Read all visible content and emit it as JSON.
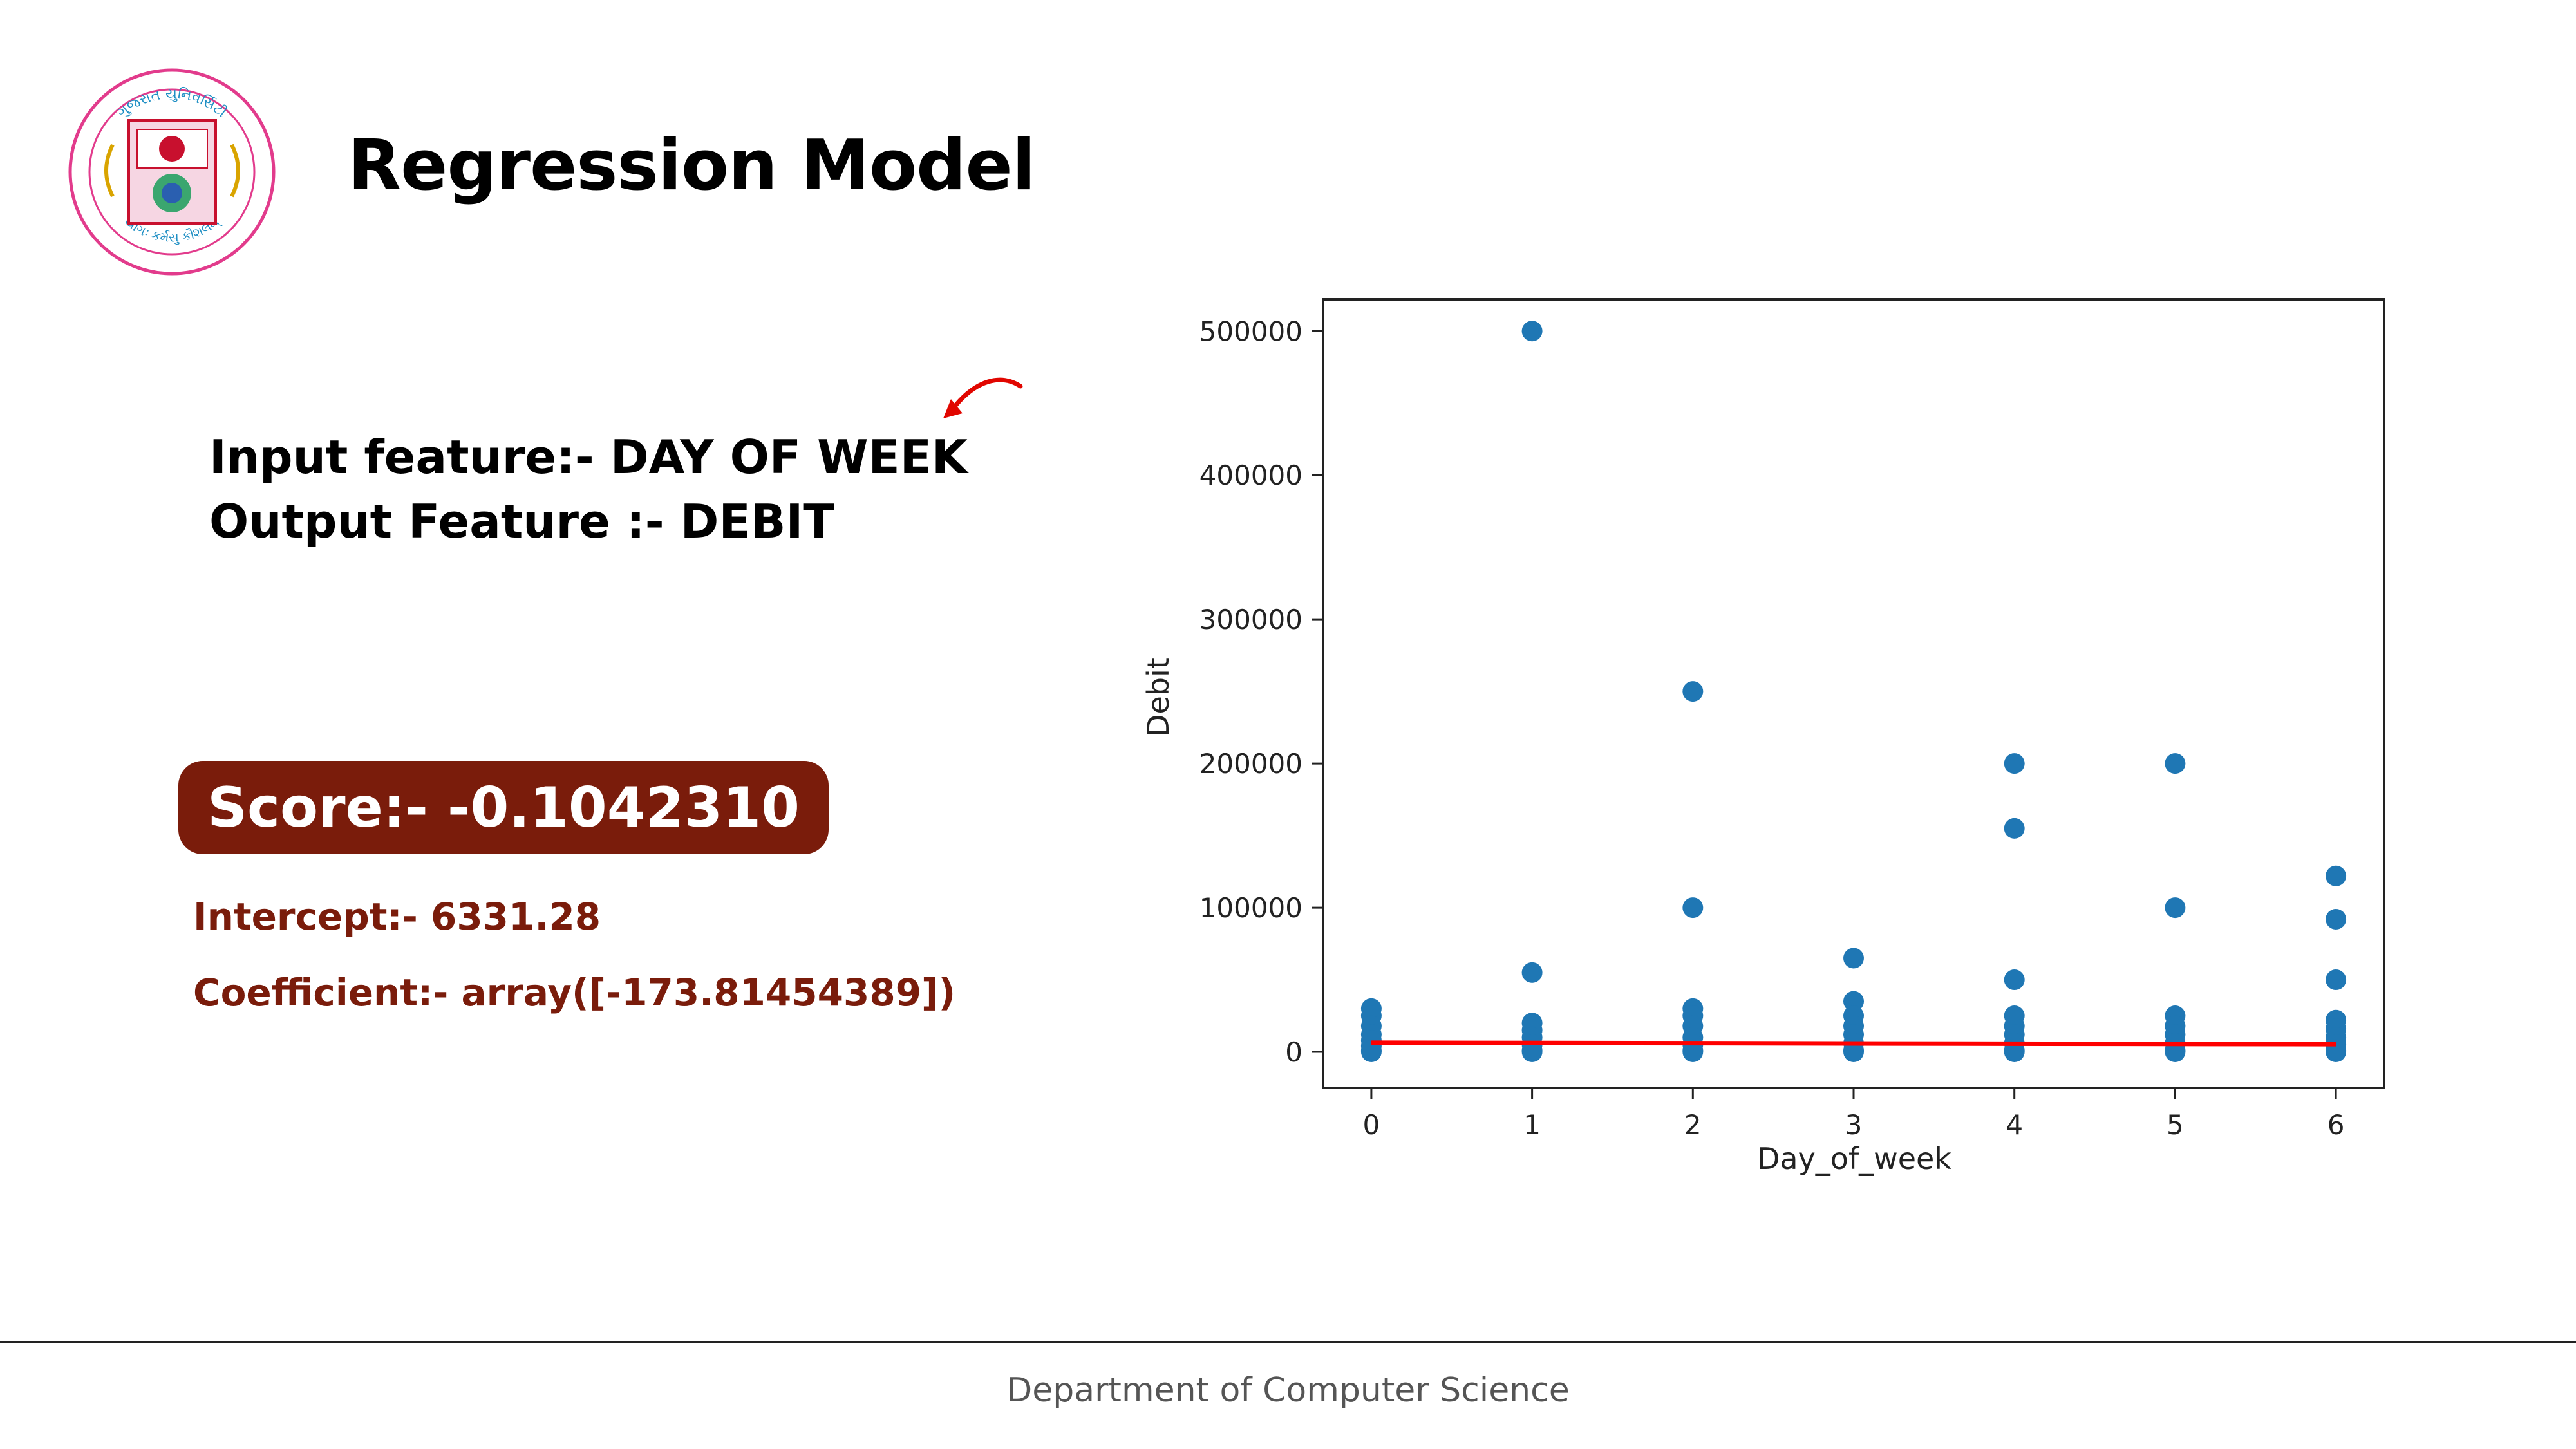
{
  "header": {
    "title": "Regression Model",
    "logo": {
      "text_top": "ગુજરાત યુનિવર્સિટી",
      "text_bottom": "યોગઃ કર્મસુ કૌશલમ્"
    }
  },
  "features": {
    "input": "Input feature:- DAY OF WEEK",
    "output": "Output Feature :- DEBIT"
  },
  "results": {
    "score": "Score:- -0.1042310",
    "intercept": "Intercept:- 6331.28",
    "coefficient": "Coefficient:- array([-173.81454389])"
  },
  "footer": {
    "text": "Department of Computer Science"
  },
  "colors": {
    "accent": "#7a1c0b",
    "points": "#1f77b4",
    "regression_line": "#ff0000"
  },
  "icons": {
    "annotation": "curved-arrow-icon"
  },
  "chart_data": {
    "type": "scatter",
    "title": "",
    "xlabel": "Day_of_week",
    "ylabel": "Debit",
    "xlim": [
      -0.3,
      6.3
    ],
    "ylim": [
      -25000,
      522000
    ],
    "xticks": [
      0,
      1,
      2,
      3,
      4,
      5,
      6
    ],
    "yticks": [
      0,
      100000,
      200000,
      300000,
      400000,
      500000
    ],
    "grid": false,
    "points": [
      [
        0,
        30000
      ],
      [
        0,
        25000
      ],
      [
        0,
        18000
      ],
      [
        0,
        12000
      ],
      [
        0,
        8000
      ],
      [
        0,
        4000
      ],
      [
        0,
        1000
      ],
      [
        0,
        0
      ],
      [
        1,
        500000
      ],
      [
        1,
        55000
      ],
      [
        1,
        20000
      ],
      [
        1,
        15000
      ],
      [
        1,
        10000
      ],
      [
        1,
        5000
      ],
      [
        1,
        1000
      ],
      [
        1,
        0
      ],
      [
        2,
        250000
      ],
      [
        2,
        100000
      ],
      [
        2,
        30000
      ],
      [
        2,
        25000
      ],
      [
        2,
        18000
      ],
      [
        2,
        10000
      ],
      [
        2,
        5000
      ],
      [
        2,
        1000
      ],
      [
        2,
        0
      ],
      [
        3,
        65000
      ],
      [
        3,
        35000
      ],
      [
        3,
        25000
      ],
      [
        3,
        18000
      ],
      [
        3,
        12000
      ],
      [
        3,
        6000
      ],
      [
        3,
        1000
      ],
      [
        3,
        0
      ],
      [
        4,
        200000
      ],
      [
        4,
        155000
      ],
      [
        4,
        50000
      ],
      [
        4,
        25000
      ],
      [
        4,
        18000
      ],
      [
        4,
        12000
      ],
      [
        4,
        6000
      ],
      [
        4,
        1000
      ],
      [
        4,
        0
      ],
      [
        5,
        200000
      ],
      [
        5,
        100000
      ],
      [
        5,
        25000
      ],
      [
        5,
        18000
      ],
      [
        5,
        12000
      ],
      [
        5,
        6000
      ],
      [
        5,
        1000
      ],
      [
        5,
        0
      ],
      [
        6,
        122000
      ],
      [
        6,
        92000
      ],
      [
        6,
        50000
      ],
      [
        6,
        22000
      ],
      [
        6,
        16000
      ],
      [
        6,
        10000
      ],
      [
        6,
        5000
      ],
      [
        6,
        1000
      ],
      [
        6,
        0
      ]
    ],
    "regression_line": {
      "x": [
        0,
        6
      ],
      "y": [
        6331.28,
        5288.39
      ]
    }
  }
}
